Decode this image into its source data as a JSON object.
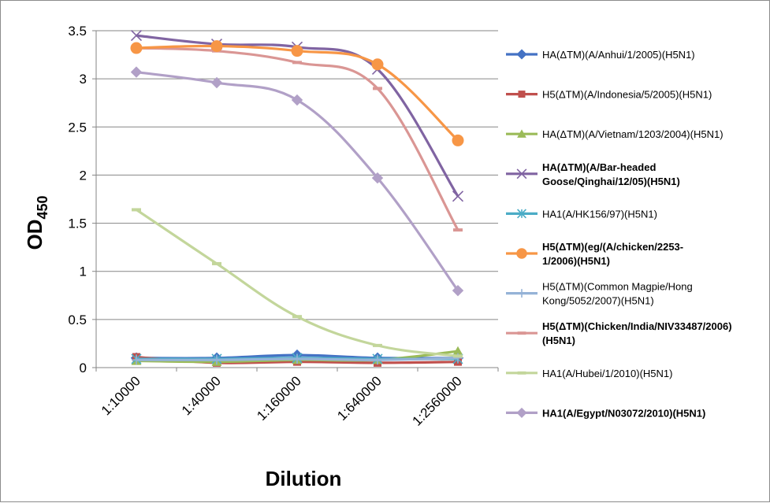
{
  "chart_data": {
    "type": "line",
    "title": "",
    "xlabel": "Dilution",
    "ylabel": "OD",
    "ylabel_subscript": "450",
    "ylim": [
      0,
      3.5
    ],
    "yticks": [
      "0",
      "0.5",
      "1",
      "1.5",
      "2",
      "2.5",
      "3",
      "3.5"
    ],
    "categories": [
      "1:10000",
      "1:40000",
      "1:160000",
      "1:640000",
      "1:2560000"
    ],
    "grid": "horizontal",
    "legend_position": "right",
    "series": [
      {
        "name": "HA(ΔTM)(A/Anhui/1/2005)(H5N1)",
        "legend_lines": [
          "HA(ΔTM)(A/Anhui/1/2005)(H5N1)"
        ],
        "bold": false,
        "color": "#4472C4",
        "marker": "diamond",
        "values": [
          0.1,
          0.1,
          0.13,
          0.1,
          0.1
        ]
      },
      {
        "name": "H5(ΔTM)(A/Indonesia/5/2005)(H5N1)",
        "legend_lines": [
          "H5(ΔTM)(A/Indonesia/5/2005)(H5N1)"
        ],
        "bold": false,
        "color": "#C0504D",
        "marker": "square",
        "values": [
          0.11,
          0.05,
          0.06,
          0.05,
          0.06
        ]
      },
      {
        "name": "HA(ΔTM)(A/Vietnam/1203/2004)(H5N1)",
        "legend_lines": [
          "HA(ΔTM)(A/Vietnam/1203/2004)(H5N1)"
        ],
        "bold": false,
        "color": "#9BBB59",
        "marker": "triangle",
        "values": [
          0.07,
          0.06,
          0.08,
          0.08,
          0.17
        ]
      },
      {
        "name": "HA(ΔTM)(A/Bar-headed Goose/Qinghai/12/05)(H5N1)",
        "legend_lines": [
          "HA(ΔTM)(A/Bar-headed",
          "Goose/Qinghai/12/05)(H5N1)"
        ],
        "bold": true,
        "color": "#8064A2",
        "marker": "x",
        "values": [
          3.45,
          3.36,
          3.33,
          3.1,
          1.78
        ]
      },
      {
        "name": "HA1(A/HK156/97)(H5N1)",
        "legend_lines": [
          "HA1(A/HK156/97)(H5N1)"
        ],
        "bold": false,
        "color": "#4BACC6",
        "marker": "star",
        "values": [
          0.09,
          0.09,
          0.1,
          0.09,
          0.09
        ]
      },
      {
        "name": "H5(ΔTM)(eg/(A/chicken/2253-1/2006)(H5N1)",
        "legend_lines": [
          "H5(ΔTM)(eg/(A/chicken/2253-",
          "1/2006)(H5N1)"
        ],
        "bold": true,
        "color": "#F79646",
        "marker": "circle",
        "values": [
          3.32,
          3.34,
          3.29,
          3.15,
          2.36
        ]
      },
      {
        "name": "H5(ΔTM)(Common Magpie/Hong Kong/5052/2007)(H5N1)",
        "legend_lines": [
          "H5(ΔTM)(Common Magpie/Hong",
          "Kong/5052/2007)(H5N1)"
        ],
        "bold": false,
        "color": "#95B3D7",
        "marker": "plus",
        "values": [
          0.08,
          0.08,
          0.09,
          0.08,
          0.1
        ]
      },
      {
        "name": "H5(ΔTM)(Chicken/India/NIV33487/2006)(H5N1)",
        "legend_lines": [
          "H5(ΔTM)(Chicken/India/NIV33487/2006)",
          "(H5N1)"
        ],
        "bold": true,
        "color": "#DA9694",
        "marker": "dash",
        "values": [
          3.32,
          3.29,
          3.17,
          2.9,
          1.43
        ]
      },
      {
        "name": "HA1(A/Hubei/1/2010)(H5N1)",
        "legend_lines": [
          "HA1(A/Hubei/1/2010)(H5N1)"
        ],
        "bold": false,
        "color": "#C3D69B",
        "marker": "dash",
        "values": [
          1.64,
          1.08,
          0.53,
          0.23,
          0.12
        ]
      },
      {
        "name": "HA1(A/Egypt/N03072/2010)(H5N1)",
        "legend_lines": [
          "HA1(A/Egypt/N03072/2010)(H5N1)"
        ],
        "bold": true,
        "color": "#B1A0C7",
        "marker": "diamond",
        "values": [
          3.07,
          2.96,
          2.78,
          1.97,
          0.8
        ]
      }
    ]
  }
}
